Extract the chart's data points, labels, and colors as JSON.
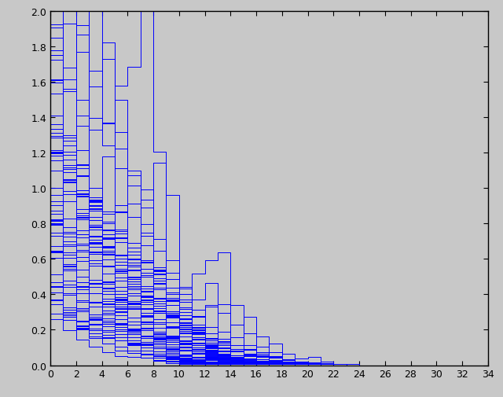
{
  "xlim": [
    0,
    34
  ],
  "ylim": [
    0,
    2
  ],
  "xticks": [
    0,
    2,
    4,
    6,
    8,
    10,
    12,
    14,
    16,
    18,
    20,
    22,
    24,
    26,
    28,
    30,
    32,
    34
  ],
  "yticks": [
    0,
    0.2,
    0.4,
    0.6,
    0.8,
    1.0,
    1.2,
    1.4,
    1.6,
    1.8,
    2.0
  ],
  "line_color": "#0000FF",
  "background_color": "#C8C8C8",
  "axes_facecolor": "#C8C8C8",
  "n_trajectories": 60,
  "max_steps": 34,
  "linewidth": 0.7,
  "seed": 12
}
